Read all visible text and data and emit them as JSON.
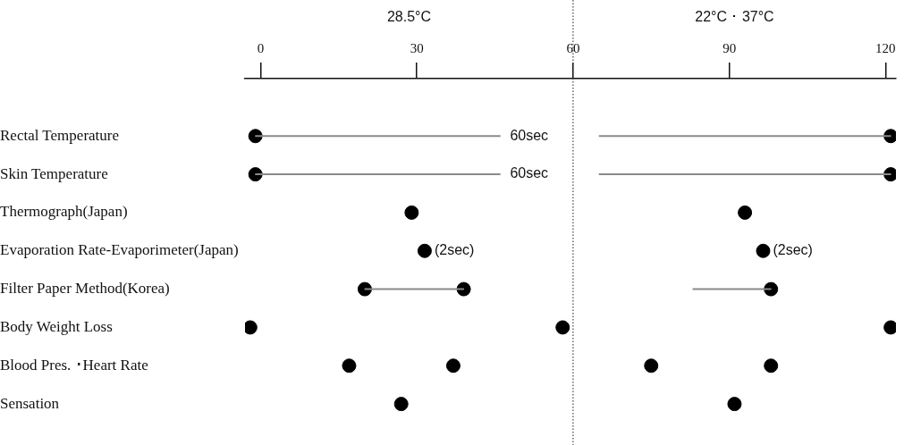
{
  "chart_data": {
    "type": "scatter",
    "orientation": "horizontal",
    "categories": [
      "Rectal Temperature",
      "Skin Temperature",
      "Thermograph(Japan)",
      "Evaporation Rate-Evaporimeter(Japan)",
      "Filter Paper Method(Korea)",
      "Body Weight Loss",
      "Blood Pres. ･Heart Rate",
      "Sensation"
    ],
    "xlim": [
      -3,
      122
    ],
    "xticks": [
      0,
      30,
      60,
      90,
      120
    ],
    "marker": "circle",
    "tick_labels": "xy",
    "series": [
      {
        "type": "bar",
        "color": "#8a8a8a",
        "base": [
          -1,
          -1,
          null,
          null,
          20,
          null,
          null,
          null
        ],
        "values": [
          47,
          47,
          null,
          null,
          19,
          null,
          null,
          null
        ]
      },
      {
        "type": "bar",
        "color": "#8a8a8a",
        "base": [
          65,
          65,
          null,
          null,
          83,
          null,
          null,
          null
        ],
        "values": [
          56,
          56,
          null,
          null,
          15,
          null,
          null,
          null
        ]
      },
      {
        "color": "#000000",
        "values": [
          -1,
          -1,
          29,
          31.5,
          20,
          -2,
          17,
          27
        ]
      },
      {
        "color": "#000000",
        "values": [
          null,
          null,
          null,
          null,
          39,
          58,
          37,
          null
        ]
      },
      {
        "color": "#000000",
        "values": [
          null,
          null,
          null,
          null,
          null,
          null,
          75,
          null
        ]
      },
      {
        "color": "#000000",
        "values": [
          121,
          121,
          93,
          96.5,
          98,
          121,
          98,
          91
        ]
      }
    ],
    "ref_lines": [
      {
        "axis": "x",
        "value": 60,
        "color": "#444444",
        "line_style": "dotted"
      }
    ],
    "annotations": [
      "28.5°C",
      "22°C ･ 37°C",
      {
        "text": "60sec",
        "x": 46,
        "y": "Rectal Temperature"
      },
      {
        "text": "60sec",
        "x": 46,
        "y": "Skin Temperature"
      },
      {
        "text": "(2sec)",
        "x": 31.5,
        "y": "Evaporation Rate-Evaporimeter(Japan)"
      },
      {
        "text": "(2sec)",
        "x": 96.5,
        "y": "Evaporation Rate-Evaporimeter(Japan)"
      }
    ]
  }
}
